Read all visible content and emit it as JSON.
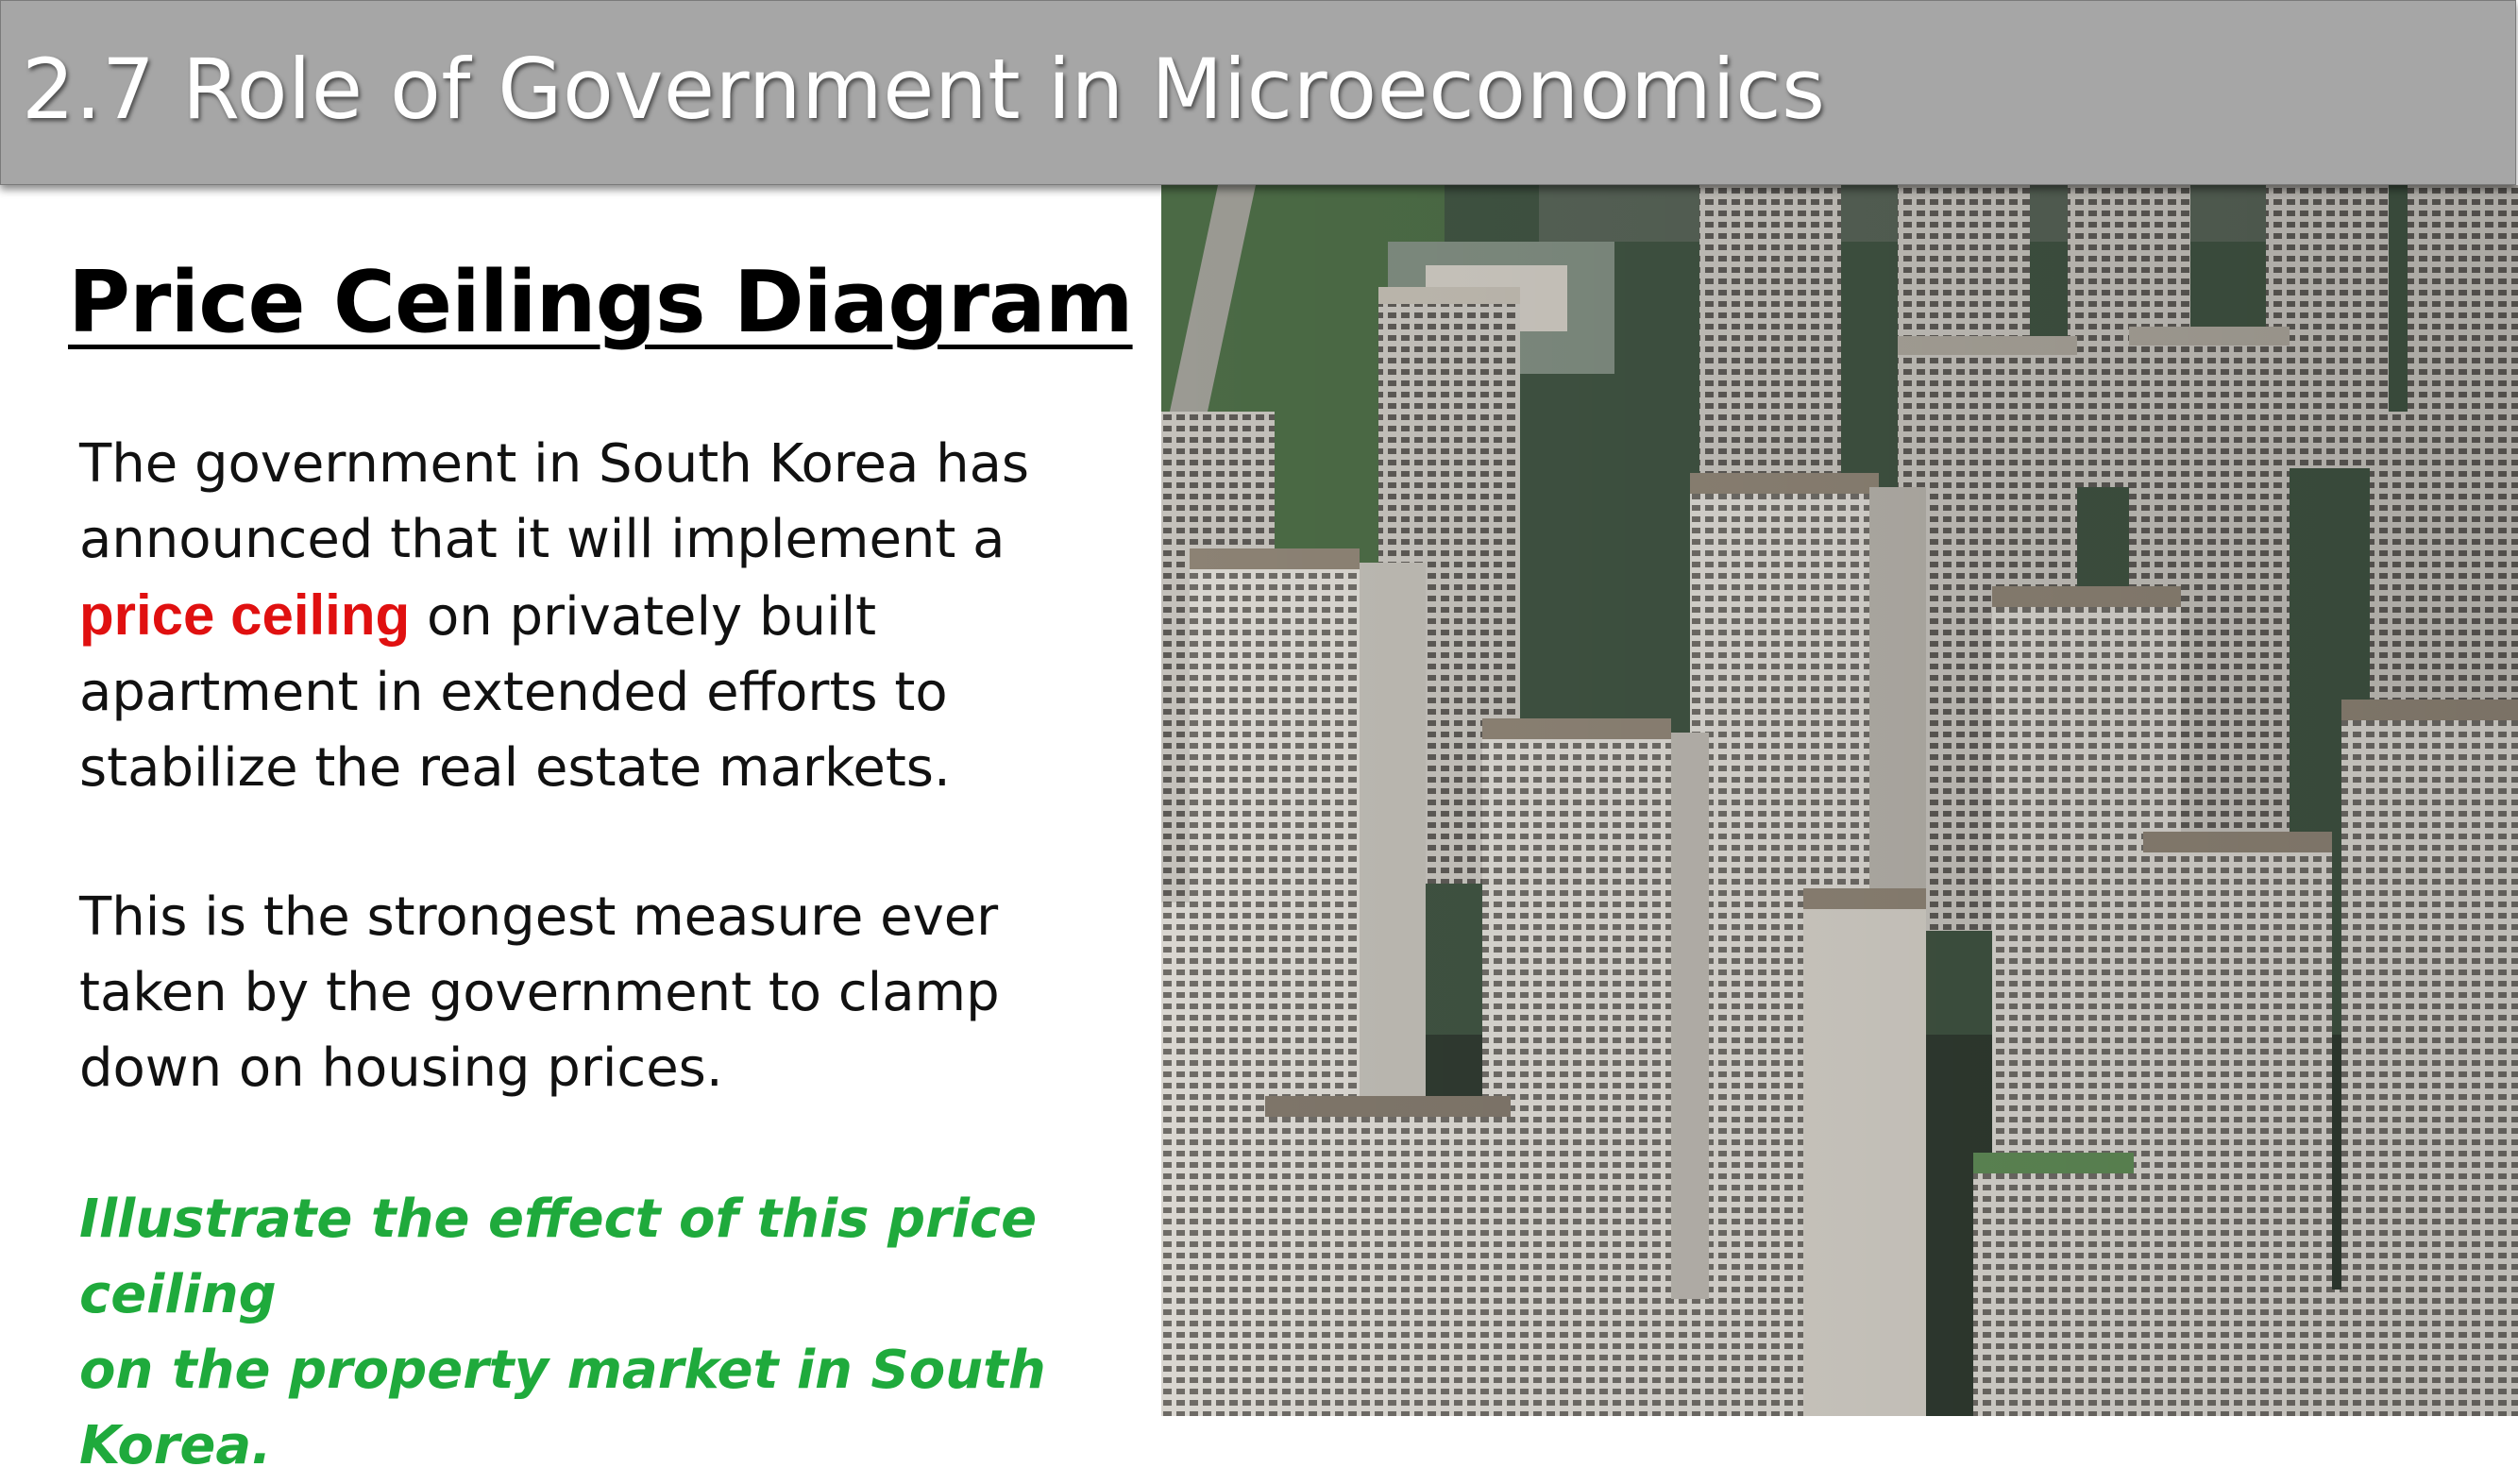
{
  "header": {
    "title": "2.7 Role of Government in Microeconomics"
  },
  "content": {
    "diagram_title": "Price Ceilings Diagram",
    "paragraph1": {
      "before_line1": "The government in South Korea has",
      "before_line2": "announced that it will implement a",
      "highlight": "price ceiling",
      "after_line3": " on privately built",
      "line4": "apartment in extended efforts to",
      "line5": "stabilize the real estate markets."
    },
    "paragraph2": {
      "line1": "This is the strongest measure ever",
      "line2": "taken by the government to clamp",
      "line3": "down on housing prices."
    },
    "question": {
      "line1": "Illustrate the effect of this price ceiling",
      "line2": "on the property market in South Korea."
    }
  },
  "colors": {
    "header_bg": "#a6a6a6",
    "highlight_red": "#e01010",
    "question_green": "#1faa3c"
  },
  "image": {
    "description_icon": "apartment-buildings-photo"
  }
}
